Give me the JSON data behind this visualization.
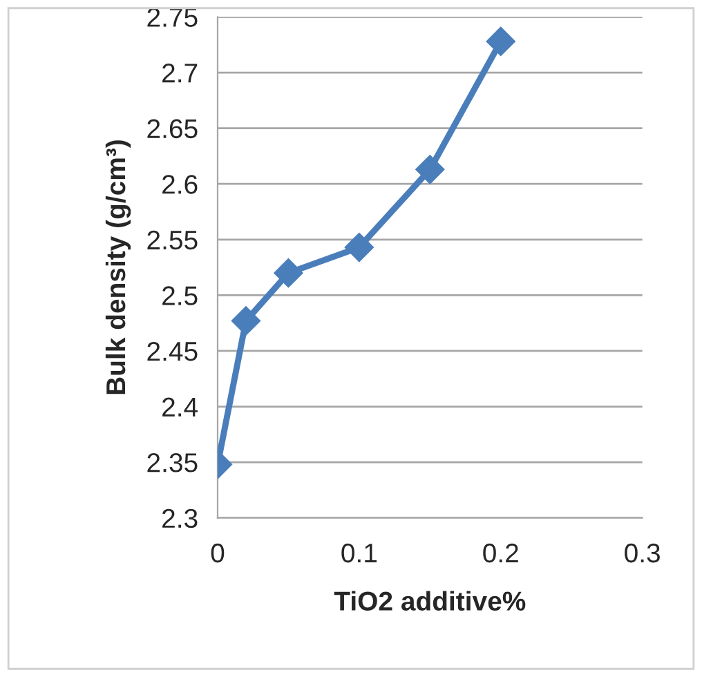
{
  "chart_data": {
    "type": "line",
    "xlabel": "TiO2 additive%",
    "ylabel": "Bulk density (g/cm³)",
    "x": [
      0,
      0.02,
      0.05,
      0.1,
      0.15,
      0.2
    ],
    "series": [
      {
        "color": "#4a7ebb",
        "values": [
          2.348,
          2.477,
          2.52,
          2.543,
          2.613,
          2.728
        ]
      }
    ],
    "xlim": [
      0,
      0.3
    ],
    "xticks": [
      0,
      0.1,
      0.2,
      0.3
    ],
    "ylim": [
      2.3,
      2.75
    ],
    "yticks": [
      2.3,
      2.35,
      2.4,
      2.45,
      2.5,
      2.55,
      2.6,
      2.65,
      2.7,
      2.75
    ],
    "grid": "y",
    "marker": "diamond",
    "line_style": "solid",
    "legend": false
  }
}
